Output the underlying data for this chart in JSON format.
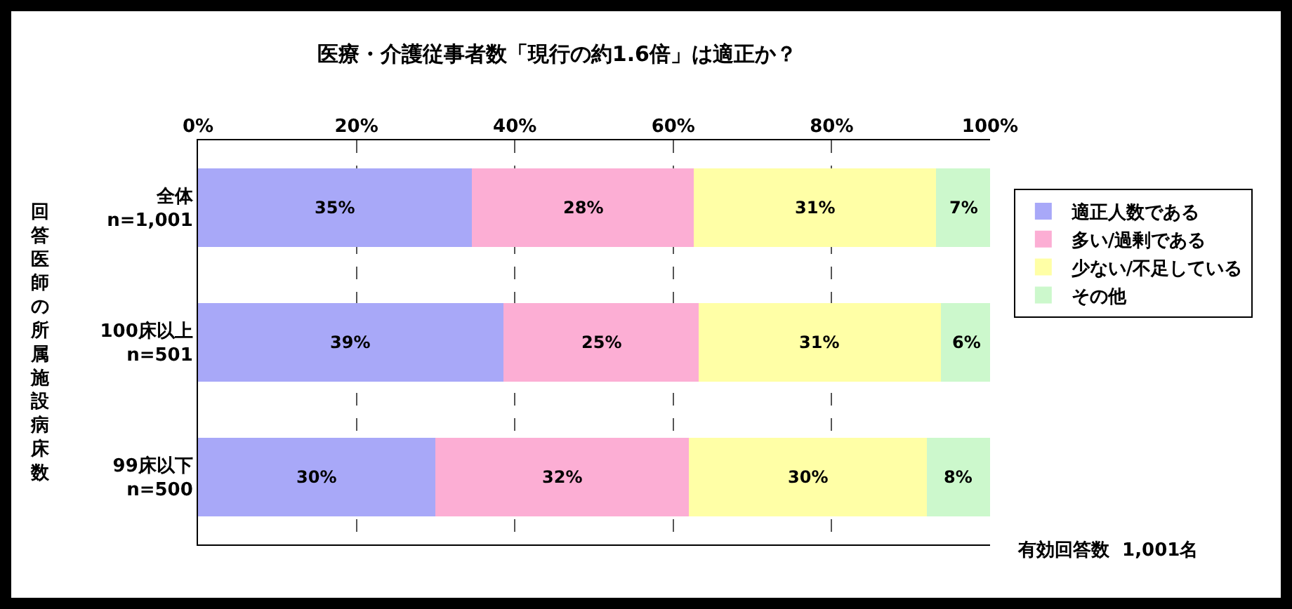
{
  "chart_data": {
    "type": "bar",
    "orientation": "horizontal",
    "stacked": true,
    "title": "医療・介護従事者数「現行の約1.6倍」は適正か？",
    "ylabel": "回答医師の所属施設病床数",
    "categories": [
      "全体\nn=1,001",
      "100床以上\nn=501",
      "99床以下\nn=500"
    ],
    "series": [
      {
        "name": "適正人数である",
        "color": "#a8a8f8",
        "values": [
          34.6,
          38.6,
          30
        ],
        "value_labels": [
          "35%",
          "39%",
          "30%"
        ]
      },
      {
        "name": "多い/過剰である",
        "color": "#fcaed4",
        "values": [
          28,
          24.6,
          32
        ],
        "value_labels": [
          "28%",
          "25%",
          "32%"
        ]
      },
      {
        "name": "少ない/不足している",
        "color": "#ffffa6",
        "values": [
          30.6,
          30.6,
          30
        ],
        "value_labels": [
          "31%",
          "31%",
          "30%"
        ]
      },
      {
        "name": "その他",
        "color": "#ccf8cc",
        "values": [
          6.8,
          6.2,
          8
        ],
        "value_labels": [
          "7%",
          "6%",
          "8%"
        ]
      }
    ],
    "xlim": [
      0,
      100
    ],
    "xticks": [
      {
        "value": 0,
        "label": "0%"
      },
      {
        "value": 20,
        "label": "20%"
      },
      {
        "value": 40,
        "label": "40%"
      },
      {
        "value": 60,
        "label": "60%"
      },
      {
        "value": 80,
        "label": "80%"
      },
      {
        "value": 100,
        "label": "100%"
      }
    ],
    "grid": "x",
    "legend": "right",
    "annotations": [
      "有効回答数  1,001名"
    ]
  }
}
